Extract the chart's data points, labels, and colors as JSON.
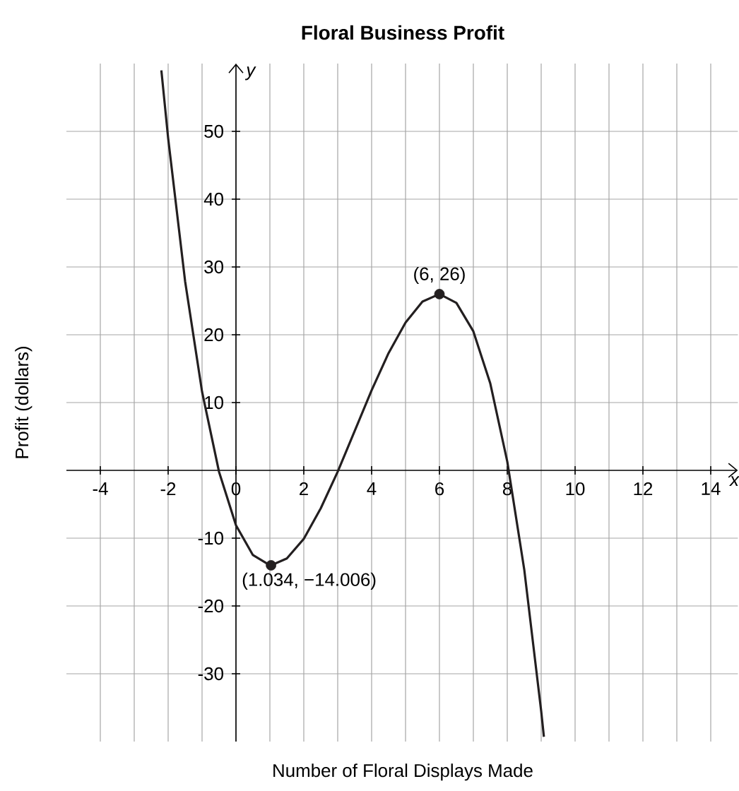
{
  "chart_data": {
    "type": "line",
    "title": "Floral Business Profit",
    "xlabel": "Number of Floral Displays Made",
    "ylabel": "Profit (dollars)",
    "xlim": [
      -5,
      14.8
    ],
    "ylim": [
      -40,
      60
    ],
    "xticks": [
      -4,
      -2,
      0,
      2,
      4,
      6,
      8,
      10,
      12,
      14
    ],
    "yticks": [
      -30,
      -20,
      -10,
      10,
      20,
      30,
      40,
      50
    ],
    "grid": true,
    "annotations": [
      "x",
      "y",
      {
        "text": "(6, 26)",
        "x": 6,
        "y": 26
      },
      {
        "text": "(1.034, −14.006)",
        "x": 1.034,
        "y": -14.006
      }
    ],
    "series": [
      {
        "color": "#231f20",
        "marker": "none",
        "x": [
          -2.2,
          -2,
          -1.5,
          -1,
          -0.5,
          0,
          0.5,
          1,
          1.034,
          1.5,
          2,
          2.5,
          3,
          3.5,
          4,
          4.5,
          5,
          5.5,
          6,
          6.5,
          7,
          7.5,
          8,
          8.5,
          9,
          9.08
        ],
        "values": [
          59.0,
          49.0,
          27.9,
          11.6,
          -0.2,
          -8.1,
          -12.5,
          -14.0,
          -14.006,
          -13.0,
          -10.1,
          -5.6,
          -0.2,
          5.8,
          11.8,
          17.3,
          21.8,
          24.9,
          26,
          24.7,
          20.5,
          12.8,
          1.3,
          -14.6,
          -35.5,
          -39.3
        ]
      },
      {
        "type": "scatter",
        "color": "#231f20",
        "marker": "circle",
        "x": [
          1.034,
          6
        ],
        "values": [
          -14.006,
          26
        ]
      }
    ]
  }
}
